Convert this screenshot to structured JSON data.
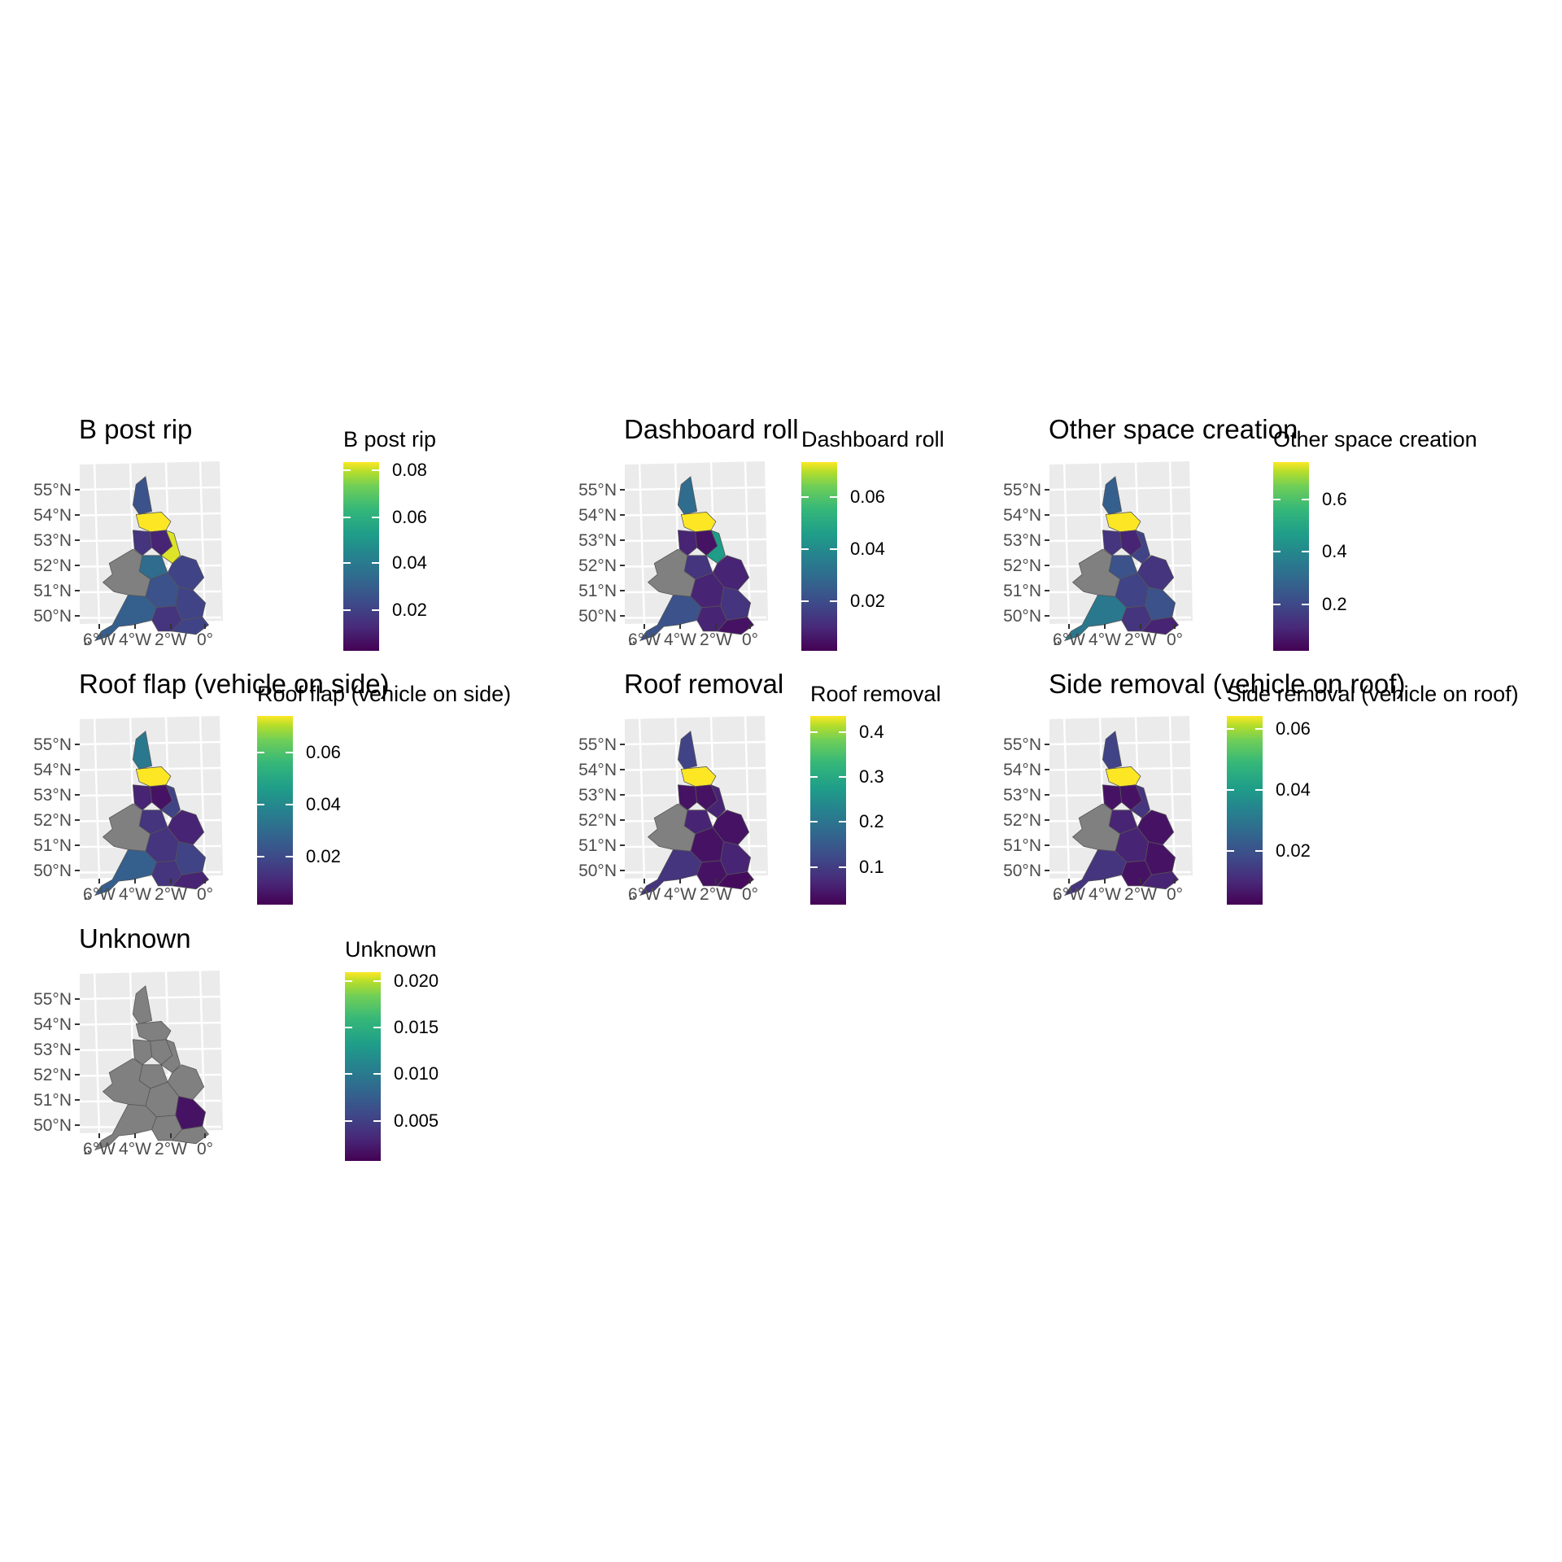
{
  "axis": {
    "lat_labels": [
      "55°N",
      "54°N",
      "53°N",
      "52°N",
      "51°N",
      "50°N"
    ],
    "lon_labels": [
      "6°W",
      "4°W",
      "2°W",
      "0°"
    ]
  },
  "colors": {
    "panel_bg": "#ebebeb",
    "grid": "#ffffff",
    "na_region": "#808080",
    "region_border": "#555555",
    "viridis": [
      "#440154",
      "#3b528b",
      "#21918c",
      "#5ec962",
      "#fde725"
    ]
  },
  "chart_data": [
    {
      "type": "choropleth",
      "title": "B post rip",
      "legend": {
        "title": "B post rip",
        "ticks": [
          "0.08",
          "0.06",
          "0.04",
          "0.02"
        ]
      }
    },
    {
      "type": "choropleth",
      "title": "Dashboard roll",
      "legend": {
        "title": "Dashboard roll",
        "ticks": [
          "0.06",
          "0.04",
          "0.02"
        ]
      }
    },
    {
      "type": "choropleth",
      "title": "Other space creation",
      "legend": {
        "title": "Other space creation",
        "ticks": [
          "0.6",
          "0.4",
          "0.2"
        ]
      }
    },
    {
      "type": "choropleth",
      "title": "Roof flap (vehicle on side)",
      "legend": {
        "title": "Roof flap (vehicle on side)",
        "ticks": [
          "0.06",
          "0.04",
          "0.02"
        ]
      }
    },
    {
      "type": "choropleth",
      "title": "Roof removal",
      "legend": {
        "title": "Roof removal",
        "ticks": [
          "0.4",
          "0.3",
          "0.2",
          "0.1"
        ]
      }
    },
    {
      "type": "choropleth",
      "title": "Side removal (vehicle on roof)",
      "legend": {
        "title": "Side removal (vehicle on roof)",
        "ticks": [
          "0.06",
          "0.04",
          "0.02"
        ]
      }
    },
    {
      "type": "choropleth",
      "title": "Unknown",
      "legend": {
        "title": "Unknown",
        "ticks": [
          "0.020",
          "0.015",
          "0.010",
          "0.005"
        ]
      }
    }
  ]
}
